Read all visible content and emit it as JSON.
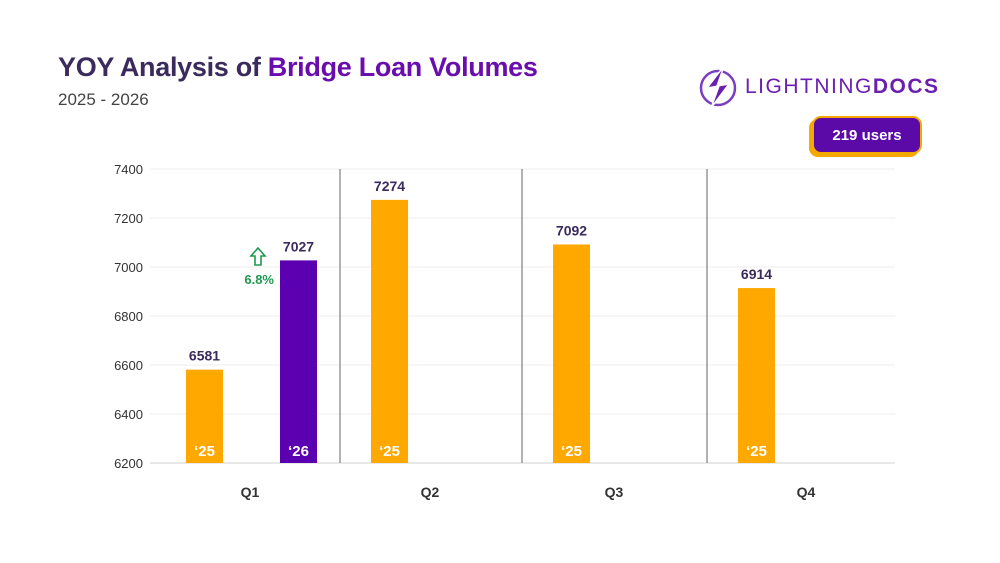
{
  "header": {
    "title_prefix": "YOY Analysis of ",
    "title_highlight": "Bridge Loan Volumes",
    "subtitle": "2025 - 2026"
  },
  "logo": {
    "light": "LIGHTNING",
    "bold": "DOCS",
    "icon": "lightning-bolt-icon"
  },
  "badge": {
    "label": "219 users"
  },
  "colors": {
    "y2025": "#ffa800",
    "y2026": "#5b00b0",
    "accent": "#6a0dad",
    "growth": "#1e9a50"
  },
  "chart_data": {
    "type": "bar",
    "categories": [
      "Q1",
      "Q2",
      "Q3",
      "Q4"
    ],
    "series": [
      {
        "name": "'25",
        "values": [
          6581,
          7274,
          7092,
          6914
        ]
      },
      {
        "name": "'26",
        "values": [
          7027,
          null,
          null,
          null
        ]
      }
    ],
    "bar_labels": [
      "‘25",
      "‘26"
    ],
    "ylim": [
      6200,
      7400
    ],
    "yticks": [
      6200,
      6400,
      6600,
      6800,
      7000,
      7200,
      7400
    ],
    "grid": true,
    "annotation": {
      "category": "Q1",
      "text": "6.8%",
      "icon": "arrow-up-icon"
    }
  }
}
